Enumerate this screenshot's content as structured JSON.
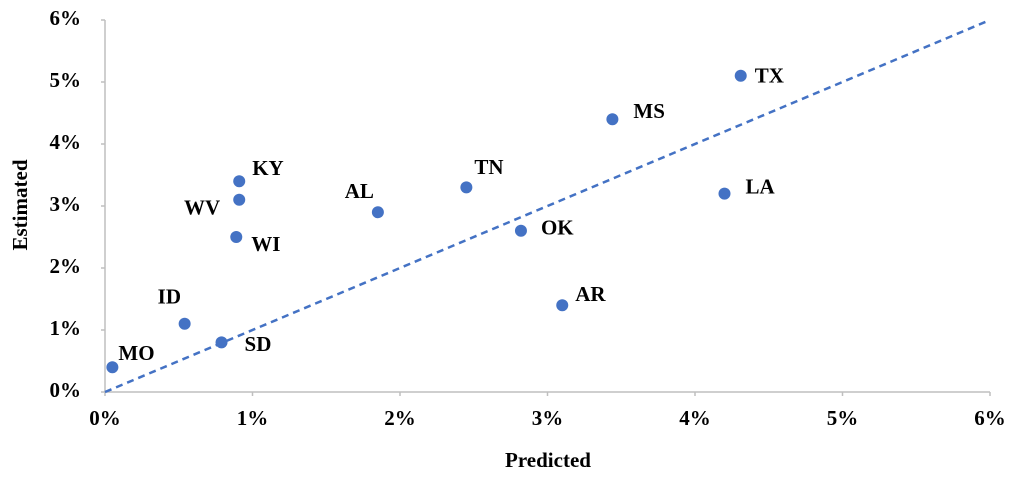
{
  "chart_data": {
    "type": "scatter",
    "xlabel": "Predicted",
    "ylabel": "Estimated",
    "point_labels": [
      "MO",
      "ID",
      "SD",
      "WI",
      "WV",
      "KY",
      "AL",
      "TN",
      "OK",
      "AR",
      "MS",
      "LA",
      "TX"
    ],
    "x": [
      0.05,
      0.54,
      0.79,
      0.89,
      0.91,
      0.91,
      1.85,
      2.45,
      2.82,
      3.1,
      3.44,
      4.2,
      4.31
    ],
    "values": [
      0.4,
      1.1,
      0.8,
      2.5,
      3.1,
      3.4,
      2.9,
      3.3,
      2.6,
      1.4,
      4.4,
      3.2,
      5.1
    ],
    "color": "#4472c4",
    "xlim": [
      0,
      6
    ],
    "ylim": [
      0,
      6
    ],
    "xticks": [
      {
        "value": 0,
        "label": "0%"
      },
      {
        "value": 1,
        "label": "1%"
      },
      {
        "value": 2,
        "label": "2%"
      },
      {
        "value": 3,
        "label": "3%"
      },
      {
        "value": 4,
        "label": "4%"
      },
      {
        "value": 5,
        "label": "5%"
      },
      {
        "value": 6,
        "label": "6%"
      }
    ],
    "yticks": [
      {
        "value": 0,
        "label": "0%"
      },
      {
        "value": 1,
        "label": "1%"
      },
      {
        "value": 2,
        "label": "2%"
      },
      {
        "value": 3,
        "label": "3%"
      },
      {
        "value": 4,
        "label": "4%"
      },
      {
        "value": 5,
        "label": "5%"
      },
      {
        "value": 6,
        "label": "6%"
      }
    ]
  }
}
